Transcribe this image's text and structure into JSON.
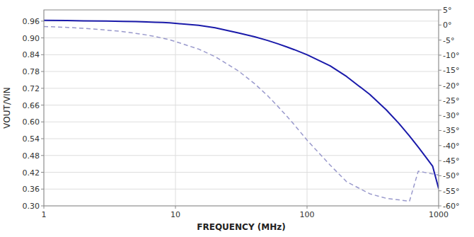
{
  "chart_data": {
    "type": "line",
    "xlabel": "FREQUENCY (MHz)",
    "ylabel": "VOUT/VIN",
    "log": "x",
    "grid": true,
    "x": [
      1,
      1.5,
      2,
      3,
      4,
      5,
      6,
      7,
      8,
      9,
      10,
      15,
      20,
      30,
      40,
      50,
      60,
      70,
      80,
      100,
      150,
      200,
      300,
      400,
      500,
      600,
      700,
      800,
      900,
      1000
    ],
    "xlim": [
      1,
      1000
    ],
    "xticks": [
      1,
      10,
      100,
      1000
    ],
    "ylim": [
      0.3,
      1.0
    ],
    "yticks": [
      {
        "value": 0.3,
        "label": "0.30"
      },
      {
        "value": 0.36,
        "label": "0.36"
      },
      {
        "value": 0.42,
        "label": "0.42"
      },
      {
        "value": 0.48,
        "label": "0.48"
      },
      {
        "value": 0.54,
        "label": "0.54"
      },
      {
        "value": 0.6,
        "label": "0.60"
      },
      {
        "value": 0.66,
        "label": "0.66"
      },
      {
        "value": 0.72,
        "label": "0.72"
      },
      {
        "value": 0.78,
        "label": "0.78"
      },
      {
        "value": 0.84,
        "label": "0.84"
      },
      {
        "value": 0.9,
        "label": "0.90"
      },
      {
        "value": 0.96,
        "label": "0.96"
      }
    ],
    "y2lim": [
      -60,
      5
    ],
    "y2ticks": [
      {
        "value": -60,
        "label": "-60°"
      },
      {
        "value": -55,
        "label": "-55°"
      },
      {
        "value": -50,
        "label": "-50°"
      },
      {
        "value": -45,
        "label": "-45°"
      },
      {
        "value": -40,
        "label": "-40°"
      },
      {
        "value": -35,
        "label": "-35°"
      },
      {
        "value": -30,
        "label": "-30°"
      },
      {
        "value": -25,
        "label": "-25°"
      },
      {
        "value": -20,
        "label": "-20°"
      },
      {
        "value": -15,
        "label": "-15°"
      },
      {
        "value": -10,
        "label": "-10°"
      },
      {
        "value": -5,
        "label": "-5°"
      },
      {
        "value": 0,
        "label": "0°"
      },
      {
        "value": 5,
        "label": "5°"
      }
    ],
    "series": [
      {
        "color": "#9999cc",
        "line_style": "dashed",
        "axis": "y2",
        "values": [
          -0.5,
          -0.8,
          -1.1,
          -1.7,
          -2.2,
          -2.8,
          -3.3,
          -3.8,
          -4.4,
          -4.9,
          -5.5,
          -8.0,
          -10.5,
          -15.2,
          -19.5,
          -23.4,
          -27.0,
          -30.2,
          -33.1,
          -38.2,
          -46.5,
          -52.0,
          -56.0,
          -57.5,
          -58.0,
          -58.5,
          -48.5,
          -49.0,
          -49.4,
          -49.8
        ]
      },
      {
        "color": "#1a1aaa",
        "line_style": "solid",
        "values": [
          0.963,
          0.962,
          0.961,
          0.96,
          0.959,
          0.958,
          0.957,
          0.956,
          0.955,
          0.954,
          0.952,
          0.945,
          0.936,
          0.918,
          0.904,
          0.891,
          0.879,
          0.868,
          0.858,
          0.84,
          0.8,
          0.762,
          0.698,
          0.643,
          0.594,
          0.55,
          0.51,
          0.474,
          0.442,
          0.362
        ]
      }
    ]
  }
}
